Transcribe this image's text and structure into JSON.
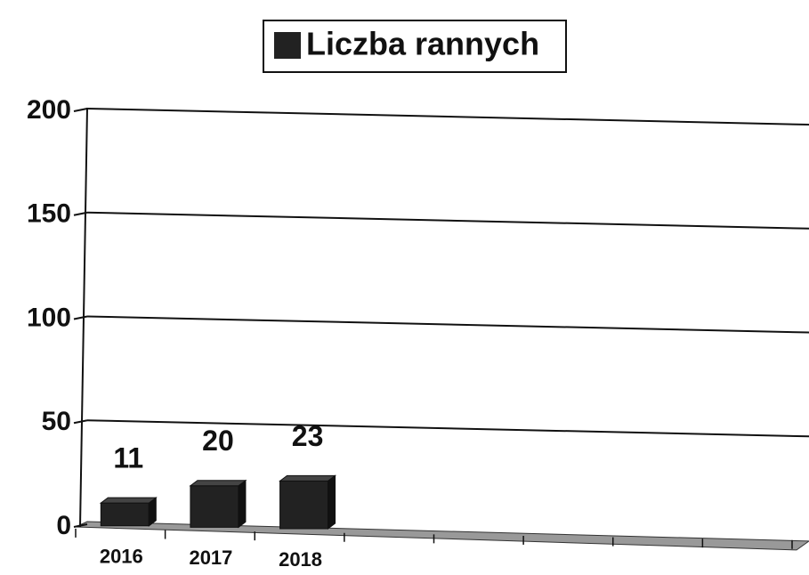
{
  "chart_data": {
    "type": "bar3d",
    "categories": [
      "2016",
      "2017",
      "2018",
      null,
      null,
      null,
      null,
      null
    ],
    "series": [
      {
        "name": "Liczba rannych",
        "color": "#222222",
        "values": [
          11,
          20,
          23,
          null,
          null,
          null,
          null,
          null
        ]
      }
    ],
    "ylim": [
      0,
      200
    ],
    "yticks": [
      0,
      50,
      100,
      150,
      200
    ],
    "grid": true,
    "legend": "top"
  }
}
